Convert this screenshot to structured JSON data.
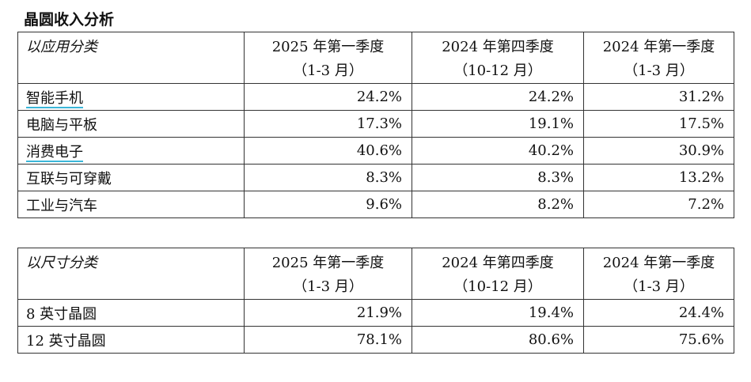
{
  "title": "晶圆收入分析",
  "tables": [
    {
      "header": [
        [
          "以应用分类"
        ],
        [
          "2025 年第一季度",
          "（1-3 月）"
        ],
        [
          "2024 年第四季度",
          "（10-12 月）"
        ],
        [
          "2024 年第一季度",
          "（1-3 月）"
        ]
      ],
      "rows": [
        [
          "智能手机",
          "24.2%",
          "24.2%",
          "31.2%"
        ],
        [
          "电脑与平板",
          "17.3%",
          "19.1%",
          "17.5%"
        ],
        [
          "消费电子",
          "40.6%",
          "40.2%",
          "30.9%"
        ],
        [
          "互联与可穿戴",
          "8.3%",
          "8.3%",
          "13.2%"
        ],
        [
          "工业与汽车",
          "9.6%",
          "8.2%",
          "7.2%"
        ]
      ],
      "underlined_rows": [
        0,
        2
      ]
    },
    {
      "header": [
        [
          "以尺寸分类"
        ],
        [
          "2025 年第一季度",
          "（1-3 月）"
        ],
        [
          "2024 年第四季度",
          "（10-12 月）"
        ],
        [
          "2024 年第一季度",
          "（1-3 月）"
        ]
      ],
      "rows": [
        [
          "8 英寸晶圆",
          "21.9%",
          "19.4%",
          "24.4%"
        ],
        [
          "12 英寸晶圆",
          "78.1%",
          "80.6%",
          "75.6%"
        ]
      ],
      "underlined_rows": []
    }
  ]
}
